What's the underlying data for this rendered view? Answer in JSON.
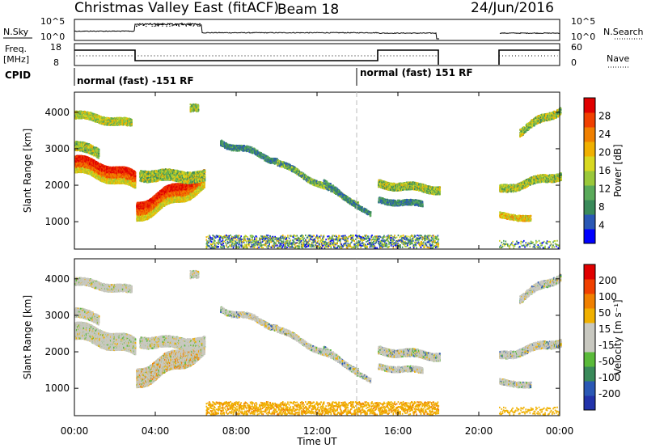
{
  "header": {
    "radar": "Christmas Valley East (fitACF)",
    "beam": "Beam 18",
    "date": "24/Jun/2016"
  },
  "top_panels": {
    "nsky_label": "N.Sky",
    "nsky_ticks": [
      "10^5",
      "10^0"
    ],
    "nsearch_label": "N.Search",
    "nsearch_ticks": [
      "10^5",
      "10^0"
    ],
    "freq_label": "Freq.",
    "freq_unit": "[MHz]",
    "freq_ticks": [
      "18",
      "8"
    ],
    "nave_label": "Nave",
    "nave_ticks": [
      "60",
      "0"
    ],
    "cpid_label": "CPID",
    "cpid_segments": [
      "normal (fast) -151 RF",
      "normal (fast) 151 RF"
    ]
  },
  "colors": {
    "power_scale": [
      "#0000ff",
      "#2a58b5",
      "#3a8a5a",
      "#5aaa5a",
      "#9ac83a",
      "#d8d820",
      "#f0b000",
      "#f08000",
      "#f04000",
      "#e00000"
    ],
    "velocity_scale": [
      "#2233aa",
      "#2a58b5",
      "#3a8a5a",
      "#5aba3a",
      "#c8c8c0",
      "#c8c8c0",
      "#f0b000",
      "#f08000",
      "#f04000",
      "#e00000"
    ]
  },
  "chart_data": [
    {
      "type": "heatmap",
      "panel": "power",
      "ylabel": "Slant Range [km]",
      "yticks": [
        1000,
        2000,
        3000,
        4000
      ],
      "ylim": [
        250,
        4550
      ],
      "colorbar_label": "Power [dB]",
      "colorbar_ticks": [
        "28",
        "24",
        "20",
        "16",
        "12",
        "8",
        "4"
      ],
      "clim": [
        0,
        30
      ]
    },
    {
      "type": "heatmap",
      "panel": "velocity",
      "ylabel": "Slant Range [km]",
      "yticks": [
        1000,
        2000,
        3000,
        4000
      ],
      "ylim": [
        250,
        4550
      ],
      "colorbar_label": "Velocity [m s⁻¹]",
      "colorbar_ticks": [
        "200",
        "100",
        "50",
        "15",
        "-15",
        "-50",
        "-100",
        "-200"
      ],
      "clim": [
        -250,
        250
      ]
    }
  ],
  "xaxis": {
    "label": "Time UT",
    "ticks": [
      "00:00",
      "04:00",
      "08:00",
      "12:00",
      "16:00",
      "20:00",
      "00:00"
    ],
    "xlim_hours": [
      0,
      24
    ]
  }
}
